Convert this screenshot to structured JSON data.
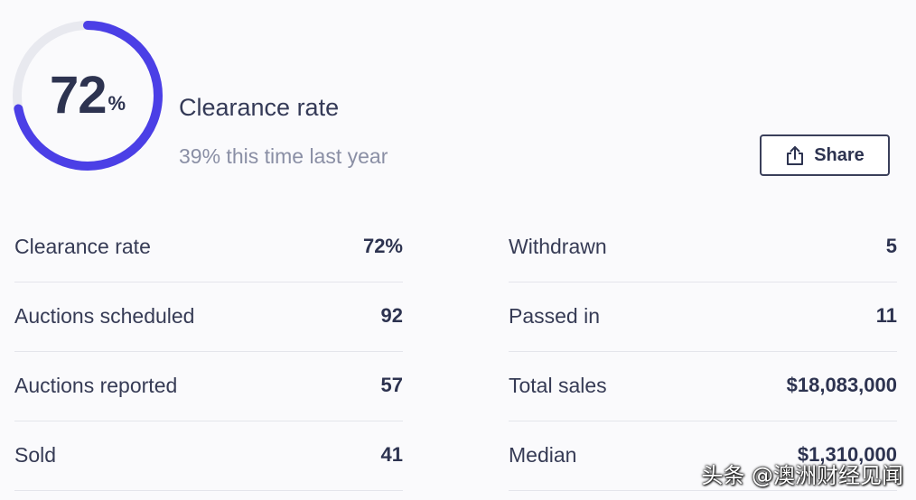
{
  "summary": {
    "rate_number": "72",
    "rate_unit": "%",
    "rate_fraction": 0.72,
    "title": "Clearance rate",
    "comparison": "39% this time last year",
    "accent_color": "#4b3fe6",
    "track_color": "#e8e9ef"
  },
  "share": {
    "label": "Share",
    "icon": "share-icon"
  },
  "stats": {
    "left": [
      {
        "label": "Clearance rate",
        "value": "72%"
      },
      {
        "label": "Auctions scheduled",
        "value": "92"
      },
      {
        "label": "Auctions reported",
        "value": "57"
      },
      {
        "label": "Sold",
        "value": "41"
      }
    ],
    "right": [
      {
        "label": "Withdrawn",
        "value": "5"
      },
      {
        "label": "Passed in",
        "value": "11"
      },
      {
        "label": "Total sales",
        "value": "$18,083,000"
      },
      {
        "label": "Median",
        "value": "$1,310,000"
      }
    ]
  },
  "watermark": "头条 @澳洲财经见闻"
}
